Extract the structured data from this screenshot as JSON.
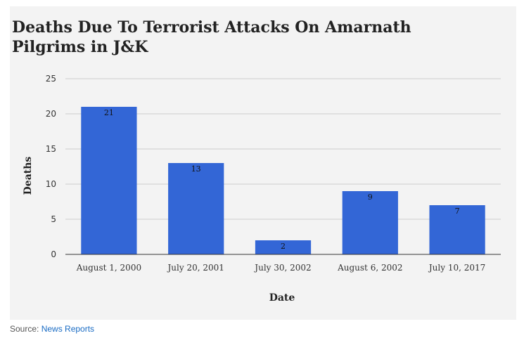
{
  "chart_data": {
    "type": "bar",
    "title": "Deaths Due To Terrorist Attacks On Amarnath Pilgrims in J&K",
    "xlabel": "Date",
    "ylabel": "Deaths",
    "categories": [
      "August 1, 2000",
      "July 20, 2001",
      "July 30, 2002",
      "August 6, 2002",
      "July 10, 2017"
    ],
    "values": [
      21,
      13,
      2,
      9,
      7
    ],
    "ylim": [
      0,
      25
    ],
    "yticks": [
      0,
      5,
      10,
      15,
      20,
      25
    ],
    "grid": true,
    "bar_color": "#3366d6",
    "data_labels": true
  },
  "source": {
    "prefix": "Source: ",
    "link_text": "News Reports"
  },
  "colors": {
    "panel_background": "#f3f3f3",
    "gridline": "#cccccc",
    "axis_line": "#333333",
    "link": "#1a6cc4"
  }
}
